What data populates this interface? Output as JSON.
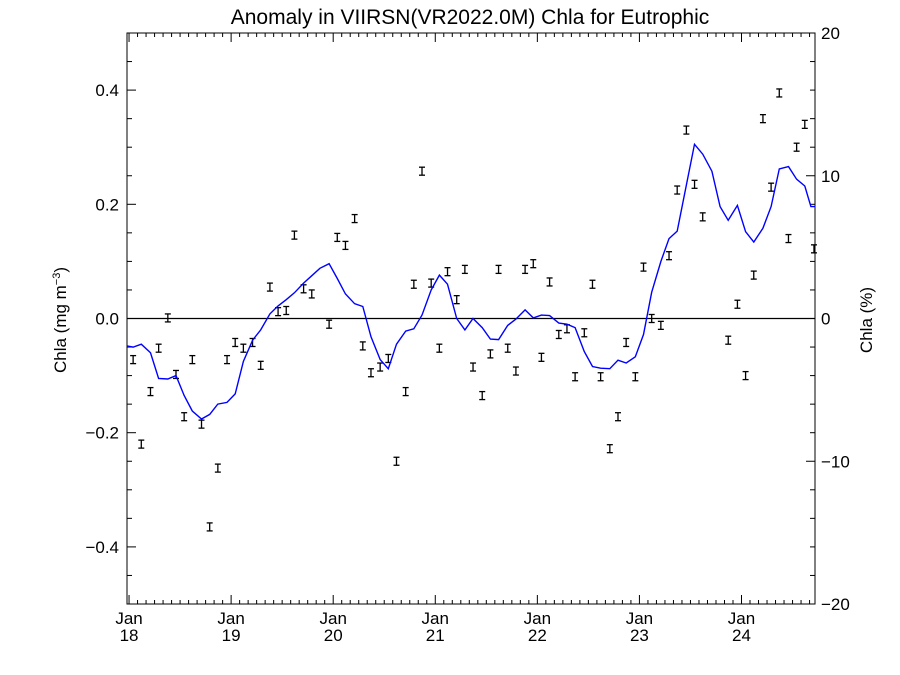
{
  "chart_data": {
    "type": "scatter",
    "title": "Anomaly in VIIRSN(VR2022.0M) Chla for Eutrophic",
    "ylabel_left": "Chla (mg m⁻³)",
    "ylabel_right": "Chla (%)",
    "xlabel": "",
    "ylim_left": [
      -0.5,
      0.5
    ],
    "ylim_right": [
      -20,
      20
    ],
    "xlim_years": [
      2017.98,
      2024.72
    ],
    "left_ticks": [
      "−0.4",
      "−0.2",
      "0.0",
      "0.2",
      "0.4"
    ],
    "left_tick_values": [
      -0.4,
      -0.2,
      0.0,
      0.2,
      0.4
    ],
    "right_ticks": [
      "−20",
      "−10",
      "0",
      "10",
      "20"
    ],
    "right_tick_values": [
      -20,
      -10,
      0,
      10,
      20
    ],
    "x_ticks": [
      {
        "month": "Jan",
        "year": "18",
        "x": 2018.0
      },
      {
        "month": "Jan",
        "year": "19",
        "x": 2019.0
      },
      {
        "month": "Jan",
        "year": "20",
        "x": 2020.0
      },
      {
        "month": "Jan",
        "year": "21",
        "x": 2021.0
      },
      {
        "month": "Jan",
        "year": "22",
        "x": 2022.0
      },
      {
        "month": "Jan",
        "year": "23",
        "x": 2023.0
      },
      {
        "month": "Jan",
        "year": "24",
        "x": 2024.0
      }
    ],
    "zero_line": 0.0,
    "grid": false,
    "series": [
      {
        "kind": "errorbar-points",
        "color": "#000000",
        "points": [
          [
            2018.04,
            -0.072
          ],
          [
            2018.12,
            -0.22
          ],
          [
            2018.21,
            -0.128
          ],
          [
            2018.29,
            -0.052
          ],
          [
            2018.38,
            0.001
          ],
          [
            2018.46,
            -0.098
          ],
          [
            2018.54,
            -0.172
          ],
          [
            2018.62,
            -0.072
          ],
          [
            2018.71,
            -0.185
          ],
          [
            2018.79,
            -0.365
          ],
          [
            2018.87,
            -0.262
          ],
          [
            2018.96,
            -0.072
          ],
          [
            2019.04,
            -0.042
          ],
          [
            2019.12,
            -0.052
          ],
          [
            2019.21,
            -0.042
          ],
          [
            2019.29,
            -0.082
          ],
          [
            2019.38,
            0.055
          ],
          [
            2019.46,
            0.012
          ],
          [
            2019.54,
            0.014
          ],
          [
            2019.62,
            0.146
          ],
          [
            2019.71,
            0.052
          ],
          [
            2019.79,
            0.043
          ],
          [
            2019.96,
            -0.01
          ],
          [
            2020.04,
            0.142
          ],
          [
            2020.12,
            0.128
          ],
          [
            2020.21,
            0.175
          ],
          [
            2020.29,
            -0.048
          ],
          [
            2020.37,
            -0.095
          ],
          [
            2020.46,
            -0.085
          ],
          [
            2020.54,
            -0.07
          ],
          [
            2020.62,
            -0.25
          ],
          [
            2020.71,
            -0.128
          ],
          [
            2020.79,
            0.06
          ],
          [
            2020.87,
            0.258
          ],
          [
            2020.96,
            0.062
          ],
          [
            2021.04,
            -0.052
          ],
          [
            2021.12,
            0.082
          ],
          [
            2021.21,
            0.033
          ],
          [
            2021.29,
            0.086
          ],
          [
            2021.37,
            -0.085
          ],
          [
            2021.46,
            -0.135
          ],
          [
            2021.54,
            -0.062
          ],
          [
            2021.62,
            0.086
          ],
          [
            2021.71,
            -0.052
          ],
          [
            2021.79,
            -0.092
          ],
          [
            2021.88,
            0.086
          ],
          [
            2021.96,
            0.096
          ],
          [
            2022.04,
            -0.068
          ],
          [
            2022.12,
            0.064
          ],
          [
            2022.21,
            -0.028
          ],
          [
            2022.29,
            -0.018
          ],
          [
            2022.37,
            -0.102
          ],
          [
            2022.46,
            -0.025
          ],
          [
            2022.54,
            0.06
          ],
          [
            2022.62,
            -0.102
          ],
          [
            2022.71,
            -0.228
          ],
          [
            2022.79,
            -0.172
          ],
          [
            2022.87,
            -0.042
          ],
          [
            2022.96,
            -0.102
          ],
          [
            2023.04,
            0.09
          ],
          [
            2023.12,
            0.0
          ],
          [
            2023.21,
            -0.012
          ],
          [
            2023.29,
            0.11
          ],
          [
            2023.37,
            0.225
          ],
          [
            2023.46,
            0.33
          ],
          [
            2023.54,
            0.235
          ],
          [
            2023.62,
            0.178
          ],
          [
            2023.87,
            -0.038
          ],
          [
            2023.96,
            0.025
          ],
          [
            2024.04,
            -0.1
          ],
          [
            2024.12,
            0.076
          ],
          [
            2024.21,
            0.35
          ],
          [
            2024.29,
            0.23
          ],
          [
            2024.37,
            0.395
          ],
          [
            2024.46,
            0.14
          ],
          [
            2024.54,
            0.3
          ],
          [
            2024.62,
            0.34
          ],
          [
            2024.71,
            0.122
          ]
        ]
      },
      {
        "kind": "line",
        "color": "#0000ff",
        "points": [
          [
            2017.98,
            -0.048
          ],
          [
            2018.04,
            -0.05
          ],
          [
            2018.12,
            -0.045
          ],
          [
            2018.21,
            -0.06
          ],
          [
            2018.29,
            -0.105
          ],
          [
            2018.38,
            -0.106
          ],
          [
            2018.46,
            -0.1
          ],
          [
            2018.54,
            -0.135
          ],
          [
            2018.62,
            -0.162
          ],
          [
            2018.71,
            -0.176
          ],
          [
            2018.79,
            -0.168
          ],
          [
            2018.87,
            -0.15
          ],
          [
            2018.96,
            -0.147
          ],
          [
            2019.04,
            -0.132
          ],
          [
            2019.12,
            -0.075
          ],
          [
            2019.21,
            -0.038
          ],
          [
            2019.29,
            -0.02
          ],
          [
            2019.38,
            0.008
          ],
          [
            2019.46,
            0.022
          ],
          [
            2019.54,
            0.033
          ],
          [
            2019.62,
            0.045
          ],
          [
            2019.71,
            0.062
          ],
          [
            2019.79,
            0.075
          ],
          [
            2019.87,
            0.088
          ],
          [
            2019.96,
            0.096
          ],
          [
            2020.04,
            0.07
          ],
          [
            2020.12,
            0.043
          ],
          [
            2020.21,
            0.026
          ],
          [
            2020.29,
            0.021
          ],
          [
            2020.37,
            -0.032
          ],
          [
            2020.46,
            -0.072
          ],
          [
            2020.54,
            -0.088
          ],
          [
            2020.62,
            -0.045
          ],
          [
            2020.71,
            -0.022
          ],
          [
            2020.79,
            -0.018
          ],
          [
            2020.87,
            0.006
          ],
          [
            2020.96,
            0.05
          ],
          [
            2021.04,
            0.076
          ],
          [
            2021.12,
            0.06
          ],
          [
            2021.21,
            0.0
          ],
          [
            2021.29,
            -0.02
          ],
          [
            2021.37,
            0.0
          ],
          [
            2021.46,
            -0.016
          ],
          [
            2021.54,
            -0.036
          ],
          [
            2021.62,
            -0.037
          ],
          [
            2021.71,
            -0.012
          ],
          [
            2021.79,
            -0.001
          ],
          [
            2021.88,
            0.015
          ],
          [
            2021.96,
            0.001
          ],
          [
            2022.04,
            0.006
          ],
          [
            2022.12,
            0.005
          ],
          [
            2022.21,
            -0.008
          ],
          [
            2022.29,
            -0.01
          ],
          [
            2022.37,
            -0.016
          ],
          [
            2022.46,
            -0.058
          ],
          [
            2022.54,
            -0.084
          ],
          [
            2022.62,
            -0.087
          ],
          [
            2022.71,
            -0.088
          ],
          [
            2022.79,
            -0.073
          ],
          [
            2022.87,
            -0.078
          ],
          [
            2022.96,
            -0.067
          ],
          [
            2023.04,
            -0.028
          ],
          [
            2023.12,
            0.046
          ],
          [
            2023.21,
            0.1
          ],
          [
            2023.29,
            0.14
          ],
          [
            2023.37,
            0.153
          ],
          [
            2023.46,
            0.234
          ],
          [
            2023.54,
            0.305
          ],
          [
            2023.62,
            0.288
          ],
          [
            2023.71,
            0.258
          ],
          [
            2023.79,
            0.196
          ],
          [
            2023.87,
            0.172
          ],
          [
            2023.96,
            0.198
          ],
          [
            2024.04,
            0.152
          ],
          [
            2024.12,
            0.134
          ],
          [
            2024.21,
            0.158
          ],
          [
            2024.29,
            0.196
          ],
          [
            2024.37,
            0.262
          ],
          [
            2024.46,
            0.266
          ],
          [
            2024.54,
            0.244
          ],
          [
            2024.62,
            0.232
          ],
          [
            2024.68,
            0.196
          ],
          [
            2024.72,
            0.196
          ]
        ]
      }
    ]
  }
}
